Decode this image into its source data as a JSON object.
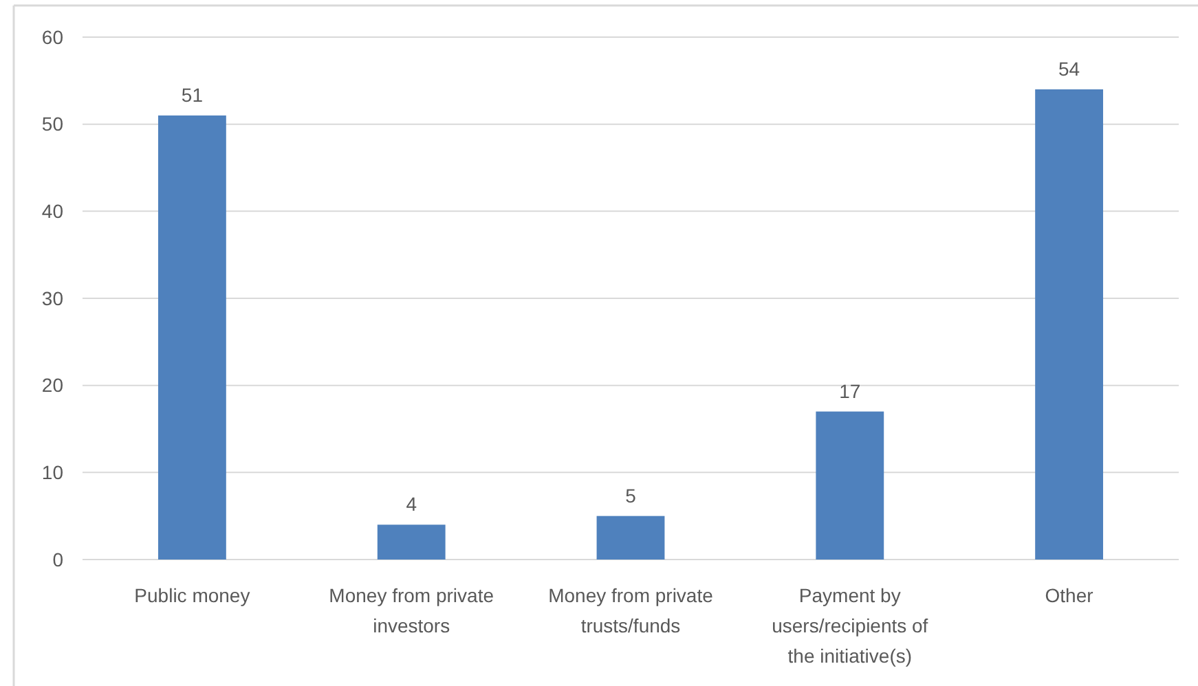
{
  "chart_data": {
    "type": "bar",
    "categories": [
      "Public money",
      "Money from private investors",
      "Money from private trusts/funds",
      "Payment by users/recipients of the initiative(s)",
      "Other"
    ],
    "values": [
      51,
      4,
      5,
      17,
      54
    ],
    "color": "#4f81bd",
    "ylim": [
      0,
      60
    ],
    "yticks": [
      0,
      10,
      20,
      30,
      40,
      50,
      60
    ],
    "grid": "y",
    "data_labels": true
  }
}
